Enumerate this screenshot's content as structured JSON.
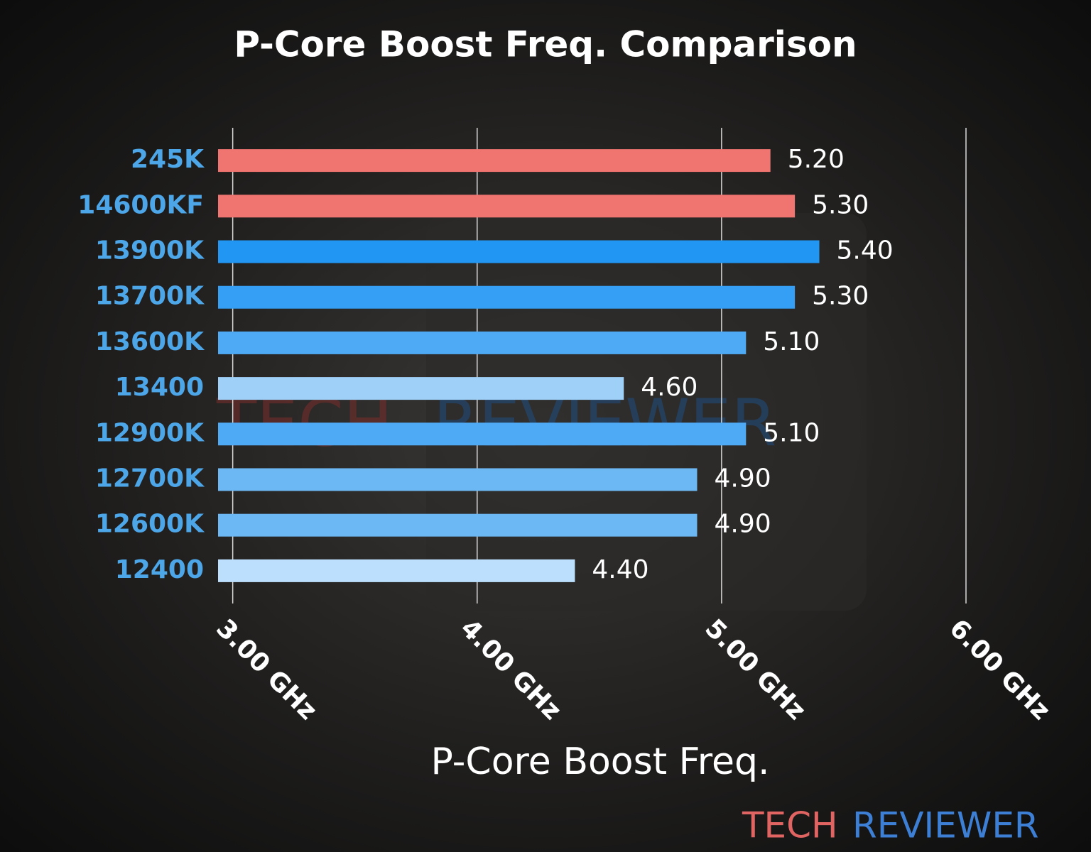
{
  "chart_data": {
    "type": "barh",
    "title": "P-Core Boost Freq. Comparison",
    "x_label": "P-Core Boost Freq.",
    "categories": [
      "245K",
      "14600KF",
      "13900K",
      "13700K",
      "13600K",
      "13400",
      "12900K",
      "12700K",
      "12600K",
      "12400"
    ],
    "values": [
      5.2,
      5.3,
      5.4,
      5.3,
      5.1,
      4.6,
      5.1,
      4.9,
      4.9,
      4.4
    ],
    "value_labels": [
      "5.20",
      "5.30",
      "5.40",
      "5.30",
      "5.10",
      "4.60",
      "5.10",
      "4.90",
      "4.90",
      "4.40"
    ],
    "colors": [
      "#f07470",
      "#f07470",
      "#2196f3",
      "#349ff4",
      "#4eaaf5",
      "#9fd0f8",
      "#4eaaf5",
      "#6cb8f5",
      "#6cb8f5",
      "#bbdffc"
    ],
    "xlim": [
      2.94,
      6.0
    ],
    "xticks": [
      {
        "value": 3,
        "label": "3.00 GHz"
      },
      {
        "value": 4,
        "label": "4.00 GHz"
      },
      {
        "value": 5,
        "label": "5.00 GHz"
      },
      {
        "value": 6,
        "label": "6.00 GHz"
      }
    ],
    "grid": true,
    "branding": [
      "TECH",
      "REVIEWER"
    ]
  }
}
